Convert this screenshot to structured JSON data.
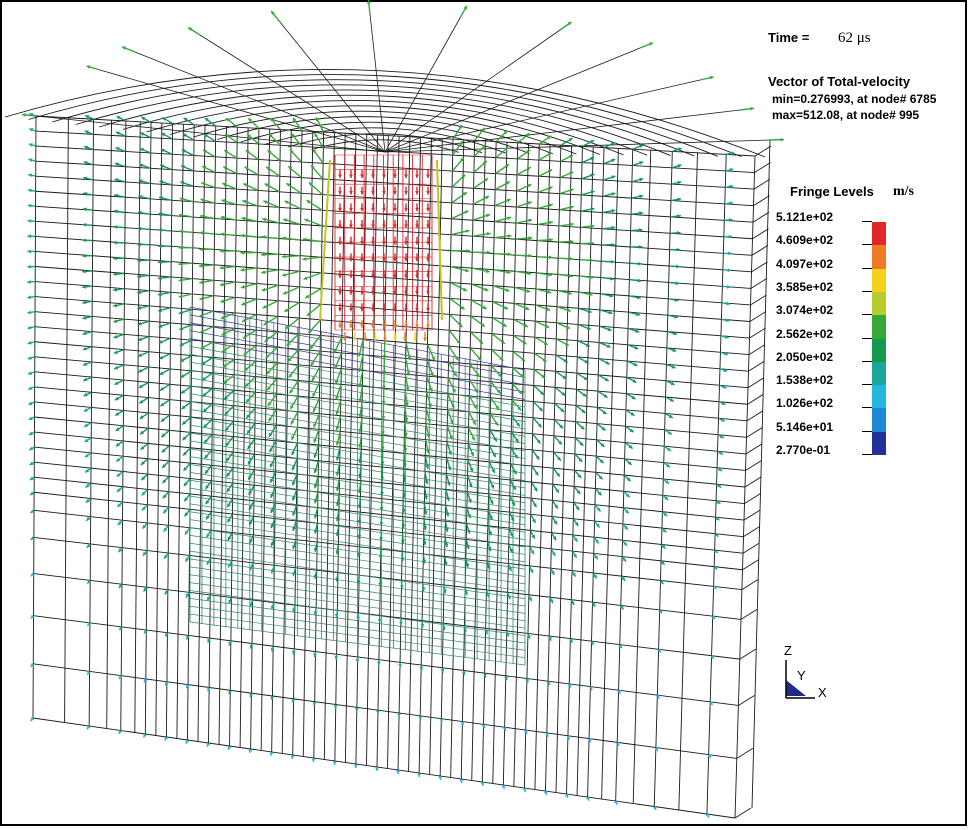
{
  "header": {
    "time_label": "Time =",
    "time_value": "62 μs",
    "title": "Vector of Total-velocity",
    "min_text": "min=0.276993, at node# 6785",
    "max_text": "max=512.08, at node# 995"
  },
  "legend": {
    "title": "Fringe Levels",
    "unit": "m/s",
    "levels": [
      "5.121e+02",
      "4.609e+02",
      "4.097e+02",
      "3.585e+02",
      "3.074e+02",
      "2.562e+02",
      "2.050e+02",
      "1.538e+02",
      "1.026e+02",
      "5.146e+01",
      "2.770e-01"
    ],
    "colors": [
      "#e0282a",
      "#ee7a28",
      "#f4d21c",
      "#b8cc2e",
      "#36a83a",
      "#139a4c",
      "#1aa79a",
      "#23b7e0",
      "#1e88d6",
      "#24309a"
    ]
  },
  "axes": {
    "z": "Z",
    "y": "Y",
    "x": "X"
  }
}
